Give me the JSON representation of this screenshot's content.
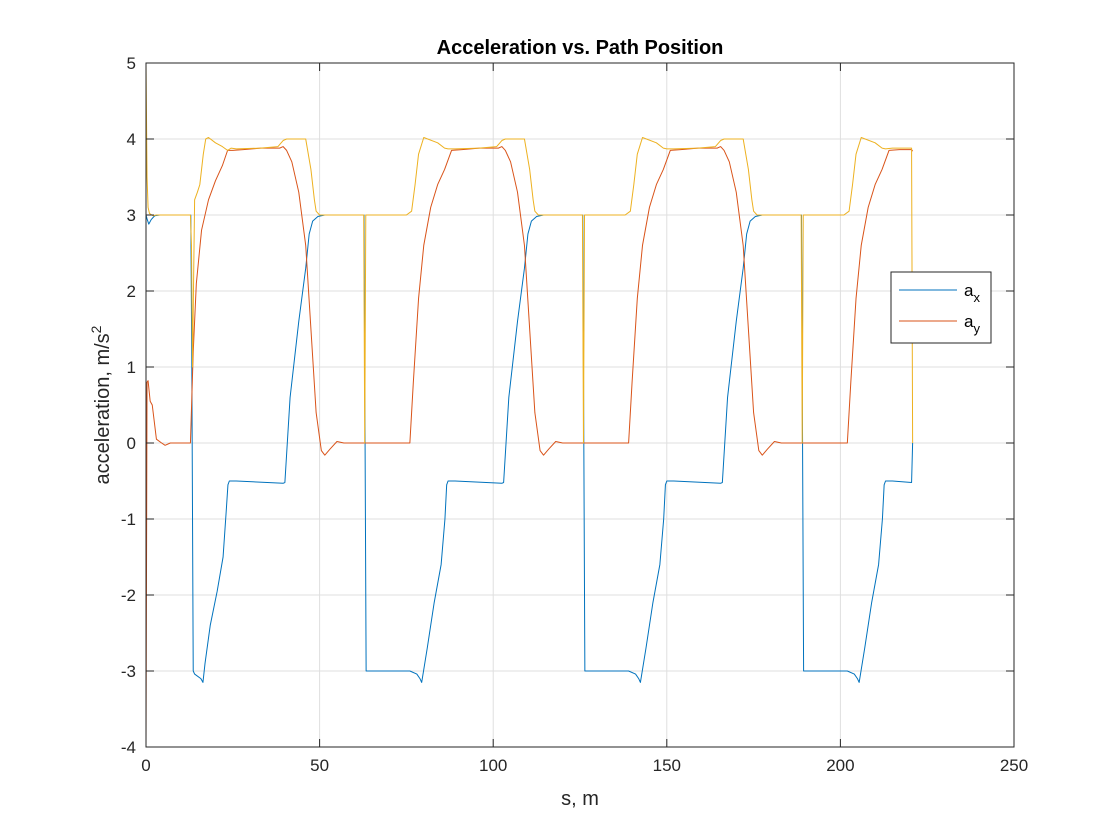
{
  "chart_data": {
    "type": "line",
    "title": "Acceleration vs. Path Position",
    "xlabel": "s, m",
    "ylabel": {
      "text": "acceleration, m/s",
      "superscript": "2"
    },
    "xlim": [
      0,
      250
    ],
    "ylim": [
      -4,
      5
    ],
    "xticks": [
      0,
      50,
      100,
      150,
      200,
      250
    ],
    "yticks": [
      -4,
      -3,
      -2,
      -1,
      0,
      1,
      2,
      3,
      4,
      5
    ],
    "grid": true,
    "legend": {
      "placement": "right",
      "entries": [
        {
          "base": "a",
          "sub": "x"
        },
        {
          "base": "a",
          "sub": "y"
        }
      ]
    },
    "series": [
      {
        "name": "a_x",
        "color": "#0072BD",
        "x": [
          0,
          0.3,
          0.8,
          1.5,
          2.5,
          4,
          8,
          12.9,
          13.2,
          13.6,
          14,
          15.8,
          16.4,
          17,
          18.5,
          20.5,
          22.2,
          23.1,
          23.6,
          24,
          26,
          39.5,
          40,
          41.5,
          44,
          46,
          47,
          48,
          49.5,
          51.5,
          53.5,
          62.8,
          63.1,
          63.4,
          76,
          78,
          78.9,
          79.4,
          81,
          83,
          85,
          86.1,
          86.6,
          87,
          89,
          102.5,
          103,
          104.5,
          107,
          109,
          110,
          111,
          112.5,
          114.5,
          116.5,
          125.8,
          126.1,
          126.4,
          139,
          141,
          141.9,
          142.4,
          144,
          146,
          148,
          149.1,
          149.6,
          150,
          152,
          165.5,
          166,
          167.5,
          170,
          172,
          173,
          174,
          175.5,
          177.5,
          179.5,
          188.8,
          189.1,
          189.4,
          202,
          204,
          204.9,
          205.4,
          207,
          209,
          211,
          212.1,
          212.6,
          213,
          215,
          220.5,
          220.8
        ],
        "y": [
          3.0,
          2.95,
          2.88,
          2.94,
          2.99,
          3.0,
          3.0,
          3.0,
          1.0,
          -3.0,
          -3.04,
          -3.1,
          -3.15,
          -2.9,
          -2.4,
          -1.95,
          -1.5,
          -0.9,
          -0.55,
          -0.5,
          -0.5,
          -0.53,
          -0.52,
          0.6,
          1.6,
          2.3,
          2.75,
          2.92,
          2.98,
          3.0,
          3.0,
          3.0,
          0.0,
          -3.0,
          -3.0,
          -3.04,
          -3.1,
          -3.15,
          -2.7,
          -2.1,
          -1.6,
          -1.0,
          -0.55,
          -0.5,
          -0.5,
          -0.53,
          -0.52,
          0.6,
          1.6,
          2.3,
          2.75,
          2.92,
          2.98,
          3.0,
          3.0,
          3.0,
          0.0,
          -3.0,
          -3.0,
          -3.04,
          -3.1,
          -3.15,
          -2.7,
          -2.1,
          -1.6,
          -1.0,
          -0.55,
          -0.5,
          -0.5,
          -0.53,
          -0.52,
          0.6,
          1.6,
          2.3,
          2.75,
          2.92,
          2.98,
          3.0,
          3.0,
          3.0,
          0.0,
          -3.0,
          -3.0,
          -3.04,
          -3.1,
          -3.15,
          -2.7,
          -2.1,
          -1.6,
          -1.0,
          -0.55,
          -0.5,
          -0.5,
          -0.52,
          0.0
        ]
      },
      {
        "name": "a_y",
        "color": "#D95319",
        "x": [
          0,
          0.3,
          0.6,
          1.2,
          1.8,
          3,
          4.5,
          5.5,
          7,
          9,
          12.8,
          13.2,
          13.6,
          14.5,
          16,
          18,
          20,
          22,
          23.5,
          25,
          28,
          33,
          38.5,
          39.5,
          40.5,
          42,
          44,
          46,
          47.5,
          49,
          50.5,
          51.5,
          53,
          55,
          57,
          63.2,
          76,
          77,
          78.5,
          80,
          82,
          84,
          86,
          88,
          91,
          96,
          101.5,
          102.5,
          103.5,
          105,
          107,
          109,
          110.5,
          112,
          113.5,
          114.5,
          116,
          118,
          120,
          126.2,
          139,
          140,
          141.5,
          143,
          145,
          147,
          149,
          151,
          154,
          159,
          164.5,
          165.5,
          166.5,
          168,
          170,
          172,
          173.5,
          175,
          176.5,
          177.5,
          179,
          181,
          183,
          189.2,
          202,
          203,
          204.5,
          206,
          208,
          210,
          212,
          214,
          217,
          220.5,
          220.8
        ],
        "y": [
          -4.0,
          0.8,
          0.82,
          0.55,
          0.5,
          0.05,
          0.0,
          -0.03,
          0.0,
          0.0,
          0.0,
          0.6,
          1.2,
          2.1,
          2.8,
          3.2,
          3.45,
          3.65,
          3.85,
          3.85,
          3.86,
          3.88,
          3.88,
          3.9,
          3.85,
          3.7,
          3.3,
          2.6,
          1.5,
          0.4,
          -0.1,
          -0.16,
          -0.08,
          0.02,
          0.0,
          0.0,
          0.0,
          0.8,
          1.9,
          2.6,
          3.1,
          3.4,
          3.6,
          3.85,
          3.86,
          3.88,
          3.88,
          3.9,
          3.85,
          3.7,
          3.3,
          2.6,
          1.5,
          0.4,
          -0.1,
          -0.16,
          -0.08,
          0.02,
          0.0,
          0.0,
          0.0,
          0.8,
          1.9,
          2.6,
          3.1,
          3.4,
          3.6,
          3.85,
          3.86,
          3.88,
          3.88,
          3.9,
          3.85,
          3.7,
          3.3,
          2.6,
          1.5,
          0.4,
          -0.1,
          -0.16,
          -0.08,
          0.02,
          0.0,
          0.0,
          0.0,
          0.8,
          1.9,
          2.6,
          3.1,
          3.4,
          3.6,
          3.85,
          3.86,
          3.86,
          3.84
        ]
      },
      {
        "name": "",
        "color": "#EDB120",
        "x": [
          0,
          0.3,
          0.6,
          1,
          2,
          3,
          5,
          12.8,
          13.1,
          13.4,
          14,
          14.8,
          15.5,
          16.5,
          17.2,
          18,
          20,
          22,
          23.5,
          24.5,
          26,
          33,
          38,
          39.5,
          40.5,
          43,
          46,
          47.5,
          48.5,
          49,
          50,
          55,
          62.7,
          63,
          63.3,
          63.6,
          64.5,
          70,
          75,
          76.5,
          77.5,
          78.5,
          80,
          84,
          86,
          87,
          89,
          96,
          101,
          102.5,
          103.5,
          106,
          109,
          110.5,
          111.5,
          112,
          113,
          118,
          125.7,
          126,
          126.3,
          126.6,
          127.5,
          133,
          138,
          139.5,
          140.5,
          141.5,
          143,
          147,
          149,
          150,
          152,
          159,
          164,
          165.5,
          166.5,
          169,
          172,
          173.5,
          174.5,
          175,
          176,
          181,
          188.7,
          189,
          189.3,
          189.6,
          190.5,
          196,
          201,
          202.5,
          203.5,
          204.5,
          206,
          210,
          212,
          213,
          215,
          220.5,
          220.8
        ],
        "y": [
          5.0,
          3.5,
          3.1,
          3.02,
          2.99,
          3.0,
          3.0,
          3.0,
          2.6,
          1.0,
          3.2,
          3.3,
          3.4,
          3.8,
          4.0,
          4.02,
          3.95,
          3.9,
          3.85,
          3.88,
          3.87,
          3.88,
          3.9,
          3.98,
          4.0,
          4.0,
          4.0,
          3.6,
          3.2,
          3.05,
          3.0,
          3.0,
          3.0,
          0.0,
          3.0,
          3.0,
          3.0,
          3.0,
          3.0,
          3.05,
          3.4,
          3.8,
          4.02,
          3.95,
          3.88,
          3.87,
          3.87,
          3.88,
          3.9,
          3.98,
          4.0,
          4.0,
          4.0,
          3.6,
          3.2,
          3.05,
          3.0,
          3.0,
          3.0,
          0.0,
          3.0,
          3.0,
          3.0,
          3.0,
          3.0,
          3.05,
          3.4,
          3.8,
          4.02,
          3.95,
          3.88,
          3.87,
          3.87,
          3.88,
          3.9,
          3.98,
          4.0,
          4.0,
          4.0,
          3.6,
          3.2,
          3.05,
          3.0,
          3.0,
          3.0,
          0.0,
          3.0,
          3.0,
          3.0,
          3.0,
          3.0,
          3.05,
          3.4,
          3.8,
          4.02,
          3.95,
          3.88,
          3.87,
          3.88,
          3.88,
          0.0
        ]
      }
    ]
  }
}
